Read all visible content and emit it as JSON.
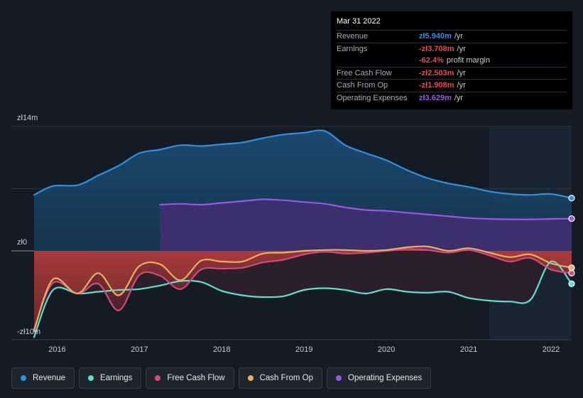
{
  "tooltip": {
    "date": "Mar 31 2022",
    "rows": [
      {
        "label": "Revenue",
        "value": "zł5.940m",
        "unit": "/yr"
      },
      {
        "label": "Earnings",
        "value": "-zł3.708m",
        "unit": "/yr"
      },
      {
        "label": "",
        "value": "-62.4%",
        "unit": "profit margin"
      },
      {
        "label": "Free Cash Flow",
        "value": "-zł2.503m",
        "unit": "/yr"
      },
      {
        "label": "Cash From Op",
        "value": "-zł1.908m",
        "unit": "/yr"
      },
      {
        "label": "Operating Expenses",
        "value": "zł3.629m",
        "unit": "/yr"
      }
    ]
  },
  "colors": {
    "revenue": "#2f8fe0",
    "earnings": "#5ce0d0",
    "fcf": "#d04a7c",
    "cfo": "#e8b060",
    "opex": "#9a55e8"
  },
  "legend": [
    {
      "label": "Revenue",
      "key": "revenue"
    },
    {
      "label": "Earnings",
      "key": "earnings"
    },
    {
      "label": "Free Cash Flow",
      "key": "fcf"
    },
    {
      "label": "Cash From Op",
      "key": "cfo"
    },
    {
      "label": "Operating Expenses",
      "key": "opex"
    }
  ],
  "chart_data": {
    "type": "line",
    "title": "",
    "xlabel": "",
    "ylabel": "",
    "y_axis_labels": {
      "top": "zł14m",
      "zero": "zł0",
      "bottom": "-zł10m"
    },
    "ylim": [
      -10,
      14
    ],
    "xlim": [
      2015.72,
      2022.25
    ],
    "x_ticks": [
      2016,
      2017,
      2018,
      2019,
      2020,
      2021,
      2022
    ],
    "x_tick_labels": [
      "2016",
      "2017",
      "2018",
      "2019",
      "2020",
      "2021",
      "2022"
    ],
    "forecast_start": 2021.25,
    "series": [
      {
        "name": "Revenue",
        "key": "revenue",
        "x": [
          2015.72,
          2015.95,
          2016.25,
          2016.5,
          2016.75,
          2017.0,
          2017.25,
          2017.5,
          2017.75,
          2018.0,
          2018.25,
          2018.5,
          2018.75,
          2019.0,
          2019.25,
          2019.5,
          2019.75,
          2020.0,
          2020.25,
          2020.5,
          2020.75,
          2021.0,
          2021.25,
          2021.5,
          2021.75,
          2022.0,
          2022.25
        ],
        "values": [
          6.3,
          7.3,
          7.4,
          8.5,
          9.6,
          11.0,
          11.4,
          11.9,
          11.8,
          12.0,
          12.2,
          12.7,
          13.1,
          13.3,
          13.5,
          11.9,
          11.0,
          10.2,
          9.1,
          8.2,
          7.6,
          7.2,
          6.7,
          6.4,
          6.3,
          6.4,
          5.94
        ]
      },
      {
        "name": "Operating Expenses",
        "key": "opex",
        "x": [
          2017.25,
          2017.5,
          2017.75,
          2018.0,
          2018.25,
          2018.5,
          2018.75,
          2019.0,
          2019.25,
          2019.5,
          2019.75,
          2020.0,
          2020.25,
          2020.5,
          2020.75,
          2021.0,
          2021.25,
          2021.5,
          2021.75,
          2022.0,
          2022.25
        ],
        "values": [
          5.2,
          5.3,
          5.2,
          5.4,
          5.6,
          5.8,
          5.7,
          5.5,
          5.3,
          4.9,
          4.6,
          4.5,
          4.3,
          4.1,
          3.9,
          3.7,
          3.6,
          3.55,
          3.55,
          3.6,
          3.63
        ]
      },
      {
        "name": "Earnings",
        "key": "earnings",
        "x": [
          2015.72,
          2015.95,
          2016.25,
          2016.5,
          2016.75,
          2017.0,
          2017.25,
          2017.5,
          2017.75,
          2018.0,
          2018.25,
          2018.5,
          2018.75,
          2019.0,
          2019.25,
          2019.5,
          2019.75,
          2020.0,
          2020.25,
          2020.5,
          2020.75,
          2021.0,
          2021.25,
          2021.5,
          2021.75,
          2022.0,
          2022.25
        ],
        "values": [
          -9.7,
          -4.4,
          -4.8,
          -4.6,
          -4.4,
          -4.3,
          -3.9,
          -3.4,
          -3.5,
          -4.5,
          -5.0,
          -5.2,
          -5.1,
          -4.4,
          -4.2,
          -4.4,
          -4.8,
          -4.3,
          -4.6,
          -4.7,
          -4.6,
          -5.3,
          -5.6,
          -5.7,
          -5.5,
          -1.2,
          -3.7
        ]
      },
      {
        "name": "Free Cash Flow",
        "key": "fcf",
        "x": [
          2015.72,
          2015.95,
          2016.25,
          2016.5,
          2016.75,
          2017.0,
          2017.25,
          2017.5,
          2017.75,
          2018.0,
          2018.25,
          2018.5,
          2018.75,
          2019.0,
          2019.25,
          2019.5,
          2019.75,
          2020.0,
          2020.25,
          2020.5,
          2020.75,
          2021.0,
          2021.25,
          2021.5,
          2021.75,
          2022.0,
          2022.25
        ],
        "values": [
          -8.8,
          -3.6,
          -4.8,
          -3.7,
          -6.7,
          -2.7,
          -2.8,
          -4.3,
          -2.1,
          -2.0,
          -1.9,
          -1.3,
          -1.0,
          -0.4,
          -0.1,
          -0.3,
          -0.2,
          0.0,
          0.2,
          0.1,
          -0.2,
          0.1,
          -0.5,
          -1.2,
          -0.8,
          -2.1,
          -2.5
        ]
      },
      {
        "name": "Cash From Op",
        "key": "cfo",
        "x": [
          2015.72,
          2015.95,
          2016.25,
          2016.5,
          2016.75,
          2017.0,
          2017.25,
          2017.5,
          2017.75,
          2018.0,
          2018.25,
          2018.5,
          2018.75,
          2019.0,
          2019.25,
          2019.5,
          2019.75,
          2020.0,
          2020.25,
          2020.5,
          2020.75,
          2021.0,
          2021.25,
          2021.5,
          2021.75,
          2022.0,
          2022.25
        ],
        "values": [
          -9.0,
          -3.2,
          -4.8,
          -2.5,
          -5.0,
          -1.7,
          -1.5,
          -3.3,
          -1.1,
          -1.2,
          -1.2,
          -0.3,
          -0.2,
          0.0,
          0.1,
          0.1,
          0.0,
          0.1,
          0.4,
          0.5,
          0.0,
          0.3,
          -0.2,
          -0.7,
          -0.4,
          -1.4,
          -1.9
        ]
      }
    ]
  }
}
